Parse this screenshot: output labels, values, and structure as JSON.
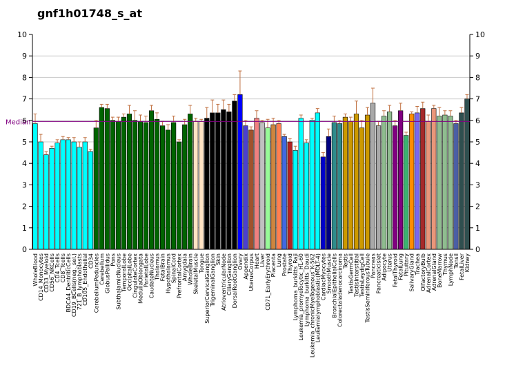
{
  "chart_data": {
    "type": "bar",
    "title": "gnf1h01748_s_at",
    "ylim": [
      0,
      10
    ],
    "yticks": [
      0,
      1,
      2,
      3,
      4,
      5,
      6,
      7,
      8,
      9,
      10
    ],
    "grid": true,
    "median": {
      "label": "Median",
      "value": 5.95,
      "color": "#800080"
    },
    "categories": [
      "WholeBlood",
      "CD14_Monocytes",
      "CD33_Myeloid",
      "CD56_NKCells",
      "CD4_Tcells",
      "CD8_Tcells",
      "BDCA4_DentriticCells",
      "CD19_BCells(neg._sel.)",
      "721_B_lymphoblasts",
      "CD105_Endothelial",
      "CD34",
      "CerebellumPeduncles",
      "Cerebellum",
      "GlobusPallidus",
      "Pons",
      "SubthalamicNucleus",
      "TemporalLobe",
      "OccipitalLobe",
      "CingulateCortex",
      "MedullaOblongata",
      "ParietalLobe",
      "CaudateNucleus",
      "Thalamus",
      "FetalBrain",
      "Hypothalamus",
      "SpinalCord",
      "PrefrontalCortex",
      "Amygdala",
      "WholeBrain",
      "SkeletalMuscle",
      "Tongue",
      "SuperiorCervicalGanglion",
      "TrigeminalGanglion",
      "Skin",
      "AtrioventricularNode",
      "CiliaryGanglion",
      "DorsalRootGanglion",
      "Ovary",
      "Appendix",
      "UterusCorpus",
      "Heart",
      "Liver",
      "CD71_EarlyErythroid",
      "Placenta",
      "Lung",
      "Prostate",
      "Thyroid",
      "Lymphoma_burkitts_Raji",
      "Leukemia_promyelocytic_HL-60",
      "Lymphoma_burkitts_Daudi",
      "Leukemia_chronicMyelogenous_K-562",
      "Leukemialymphoblastic(MOLT-4)",
      "CardiacMyocytes",
      "SmoothMuscle",
      "BronchialEpithelialCells",
      "Colorectaladenocarcinoma",
      "Testis",
      "TestisGermCell",
      "TestisInterstitial",
      "TestisLeydigCell",
      "TestisSeminiferousTubule",
      "Pancreas",
      "PancreaticIslet",
      "Adipocyte",
      "Uterus",
      "FetalThyroid",
      "FetalLung",
      "Pituitary",
      "SalivaryGland",
      "Trachea",
      "OlfactoryBulb",
      "AdrenalCortex",
      "AdrenalGland",
      "BoneMarrow",
      "Thymus",
      "LymphNode",
      "Tonsil",
      "FetalLiver",
      "Kidney"
    ],
    "values": [
      5.85,
      5.0,
      4.4,
      4.7,
      4.95,
      5.1,
      5.1,
      5.0,
      4.75,
      5.0,
      4.55,
      5.65,
      6.6,
      6.55,
      6.0,
      5.95,
      6.15,
      6.3,
      6.0,
      5.95,
      5.9,
      6.45,
      6.05,
      5.75,
      5.55,
      5.9,
      5.0,
      5.8,
      6.3,
      5.95,
      5.95,
      6.1,
      6.35,
      6.35,
      6.5,
      6.4,
      6.9,
      7.2,
      5.75,
      5.55,
      6.1,
      5.9,
      5.65,
      5.8,
      5.85,
      5.25,
      5.0,
      4.6,
      6.1,
      4.95,
      6.0,
      6.35,
      4.3,
      5.25,
      5.9,
      5.85,
      6.15,
      5.95,
      6.3,
      5.65,
      6.25,
      6.8,
      5.75,
      6.2,
      6.4,
      5.75,
      6.45,
      5.3,
      6.3,
      6.35,
      6.55,
      5.95,
      6.55,
      6.2,
      6.25,
      6.2,
      5.85,
      6.35,
      7.0
    ],
    "errors": [
      0.45,
      0.35,
      0.15,
      0.1,
      0.15,
      0.15,
      0.1,
      0.2,
      0.25,
      0.2,
      0.1,
      0.35,
      0.15,
      0.2,
      0.15,
      0.2,
      0.15,
      0.4,
      0.45,
      0.3,
      0.3,
      0.25,
      0.3,
      0.2,
      0.25,
      0.3,
      0.1,
      0.25,
      0.4,
      0.15,
      0.1,
      0.5,
      0.6,
      0.4,
      0.45,
      0.35,
      0.3,
      1.1,
      0.25,
      0.15,
      0.35,
      0.1,
      0.4,
      0.3,
      0.15,
      0.1,
      0.15,
      0.2,
      0.15,
      0.15,
      0.1,
      0.2,
      0.2,
      0.35,
      0.3,
      0.15,
      0.15,
      0.2,
      0.6,
      0.35,
      0.35,
      0.7,
      0.2,
      0.25,
      0.3,
      0.25,
      0.35,
      0.15,
      0.1,
      0.3,
      0.3,
      0.3,
      0.15,
      0.4,
      0.2,
      0.25,
      0.15,
      0.25,
      0.2
    ],
    "colors": [
      "#00ffff",
      "#00ffff",
      "#00ffff",
      "#00ffff",
      "#00ffff",
      "#00ffff",
      "#00ffff",
      "#00ffff",
      "#00ffff",
      "#00ffff",
      "#00ffff",
      "#006400",
      "#006400",
      "#006400",
      "#006400",
      "#006400",
      "#006400",
      "#006400",
      "#006400",
      "#006400",
      "#006400",
      "#006400",
      "#006400",
      "#006400",
      "#006400",
      "#006400",
      "#006400",
      "#006400",
      "#006400",
      "#ffe4c4",
      "#ffe4c4",
      "#000000",
      "#000000",
      "#000000",
      "#000000",
      "#000000",
      "#000000",
      "#0000ff",
      "#4b3fd1",
      "#a0522d",
      "#f08080",
      "#c0c0c0",
      "#98fb98",
      "#cd853f",
      "#ff7f50",
      "#4169e1",
      "#b22222",
      "#00ffff",
      "#00ffff",
      "#00ffff",
      "#00ffff",
      "#00ffff",
      "#0000cd",
      "#000080",
      "#2e8b8b",
      "#2e8b8b",
      "#cc9900",
      "#cc9900",
      "#cc9900",
      "#cc9900",
      "#cc9900",
      "#a9a9a9",
      "#a9a9a9",
      "#8fbc8f",
      "#8fbc8f",
      "#800080",
      "#800080",
      "#3cb371",
      "#ff8c00",
      "#7b68ee",
      "#a52a2a",
      "#e9967a",
      "#e9967a",
      "#8fbc8f",
      "#8fbc8f",
      "#8fbc8f",
      "#4b5fa5",
      "#2f4f4f",
      "#2f4f4f"
    ]
  }
}
